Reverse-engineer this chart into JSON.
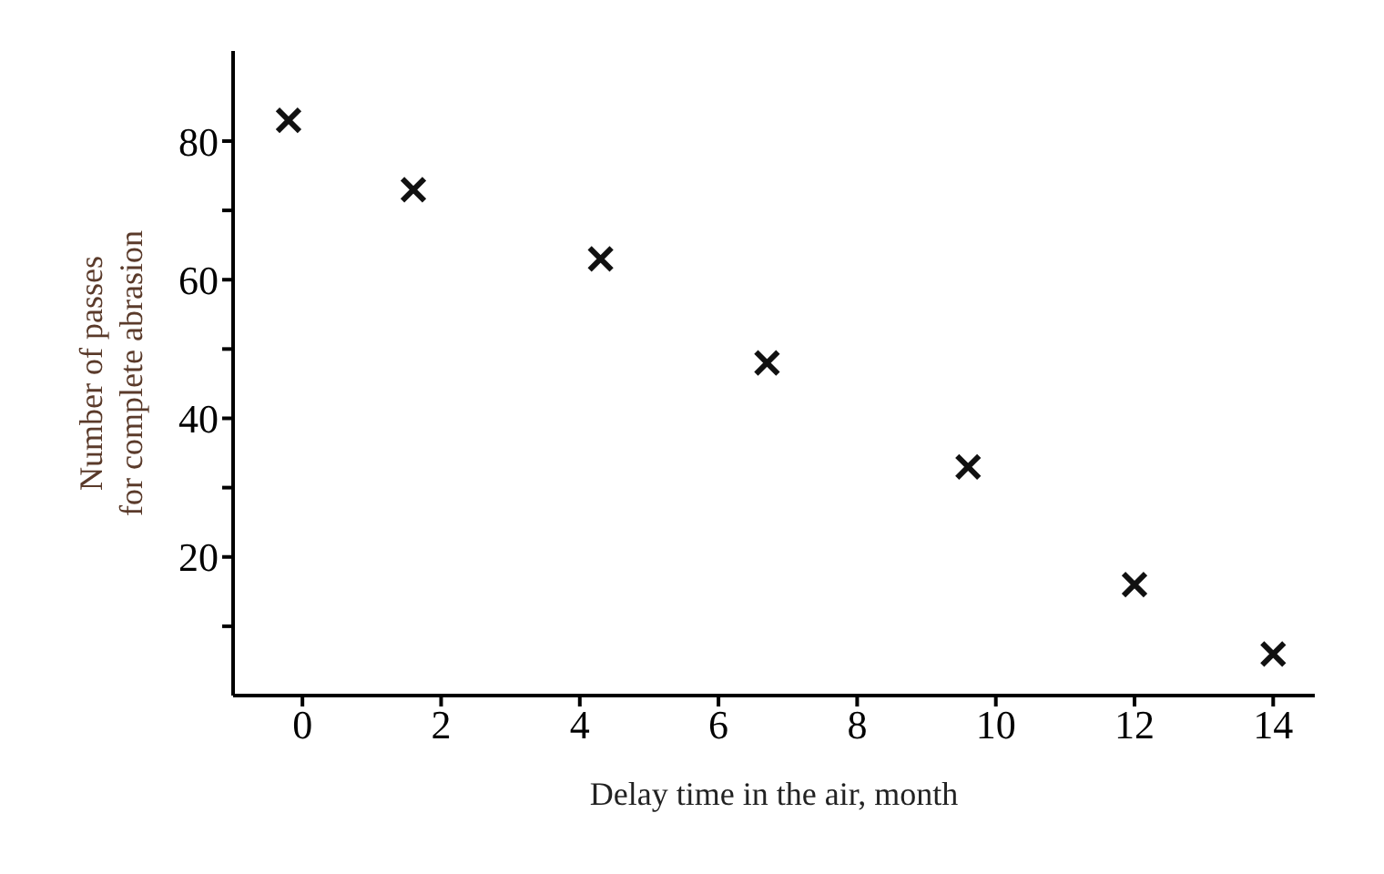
{
  "chart_data": {
    "type": "scatter",
    "xlabel": "Delay time in the air, month",
    "ylabel": "Number of passes\nfor complete abrasion",
    "x": [
      -0.2,
      1.6,
      4.3,
      6.7,
      9.6,
      12.0,
      14.0
    ],
    "values": [
      83,
      73,
      63,
      48,
      33,
      16,
      6
    ],
    "color": "#111111",
    "marker": "cross",
    "xlim": [
      -1,
      14.6
    ],
    "ylim": [
      0,
      93
    ],
    "xticks": [
      0,
      2,
      4,
      6,
      8,
      10,
      12,
      14
    ],
    "yticks": [
      {
        "value": 10,
        "label": null
      },
      20,
      {
        "value": 30,
        "label": null
      },
      40,
      {
        "value": 50,
        "label": null
      },
      60,
      {
        "value": 70,
        "label": null
      },
      80
    ],
    "grid": false,
    "legend": false
  }
}
